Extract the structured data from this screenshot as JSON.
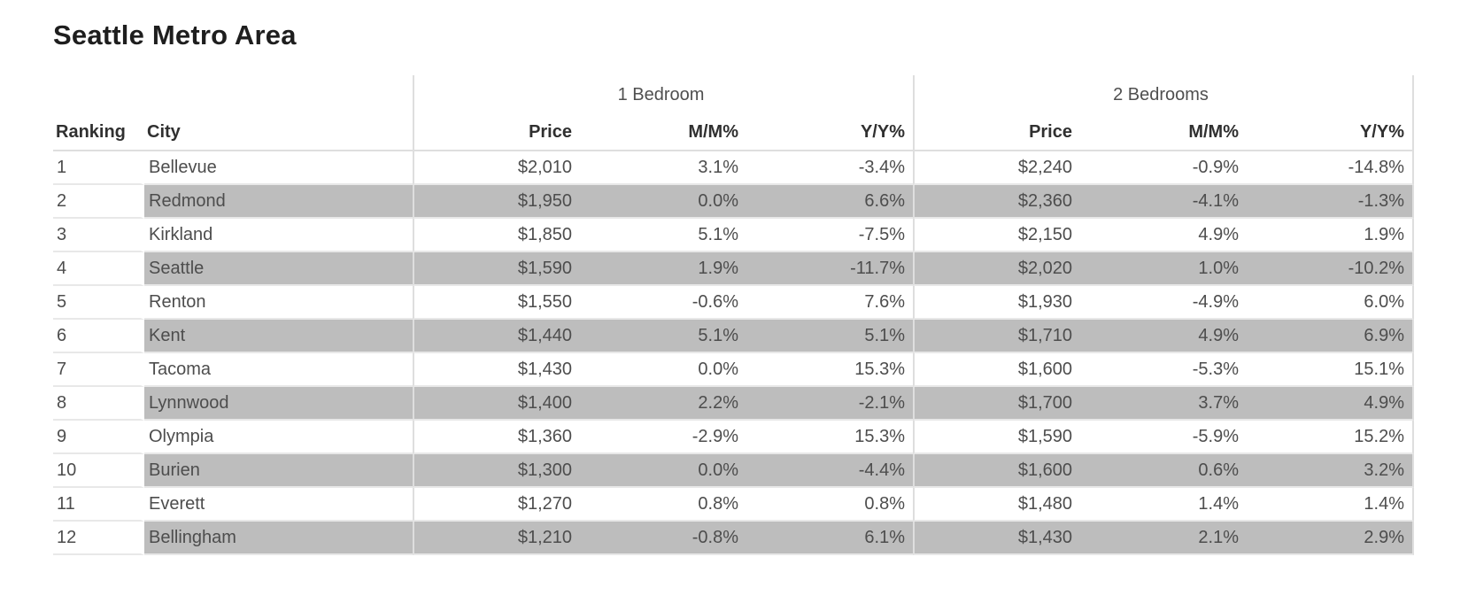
{
  "title": "Seattle Metro Area",
  "colors": {
    "stripe": "#bdbdbd",
    "divider": "#dedede",
    "row_line": "#e8e8e8",
    "title_text": "#1e1e1e",
    "header_text": "#303030",
    "group_text": "#4f4f4f",
    "body_text": "#4d4d4d"
  },
  "chart_data": {
    "type": "table",
    "title": "Seattle Metro Area",
    "column_groups": [
      {
        "label": "",
        "span": 2
      },
      {
        "label": "1 Bedroom",
        "span": 3
      },
      {
        "label": "2 Bedrooms",
        "span": 3
      }
    ],
    "columns": [
      "Ranking",
      "City",
      "Price",
      "M/M%",
      "Y/Y%",
      "Price",
      "M/M%",
      "Y/Y%"
    ],
    "rows": [
      [
        "1",
        "Bellevue",
        "$2,010",
        "3.1%",
        "-3.4%",
        "$2,240",
        "-0.9%",
        "-14.8%"
      ],
      [
        "2",
        "Redmond",
        "$1,950",
        "0.0%",
        "6.6%",
        "$2,360",
        "-4.1%",
        "-1.3%"
      ],
      [
        "3",
        "Kirkland",
        "$1,850",
        "5.1%",
        "-7.5%",
        "$2,150",
        "4.9%",
        "1.9%"
      ],
      [
        "4",
        "Seattle",
        "$1,590",
        "1.9%",
        "-11.7%",
        "$2,020",
        "1.0%",
        "-10.2%"
      ],
      [
        "5",
        "Renton",
        "$1,550",
        "-0.6%",
        "7.6%",
        "$1,930",
        "-4.9%",
        "6.0%"
      ],
      [
        "6",
        "Kent",
        "$1,440",
        "5.1%",
        "5.1%",
        "$1,710",
        "4.9%",
        "6.9%"
      ],
      [
        "7",
        "Tacoma",
        "$1,430",
        "0.0%",
        "15.3%",
        "$1,600",
        "-5.3%",
        "15.1%"
      ],
      [
        "8",
        "Lynnwood",
        "$1,400",
        "2.2%",
        "-2.1%",
        "$1,700",
        "3.7%",
        "4.9%"
      ],
      [
        "9",
        "Olympia",
        "$1,360",
        "-2.9%",
        "15.3%",
        "$1,590",
        "-5.9%",
        "15.2%"
      ],
      [
        "10",
        "Burien",
        "$1,300",
        "0.0%",
        "-4.4%",
        "$1,600",
        "0.6%",
        "3.2%"
      ],
      [
        "11",
        "Everett",
        "$1,270",
        "0.8%",
        "0.8%",
        "$1,480",
        "1.4%",
        "1.4%"
      ],
      [
        "12",
        "Bellingham",
        "$1,210",
        "-0.8%",
        "6.1%",
        "$1,430",
        "2.1%",
        "2.9%"
      ]
    ]
  }
}
